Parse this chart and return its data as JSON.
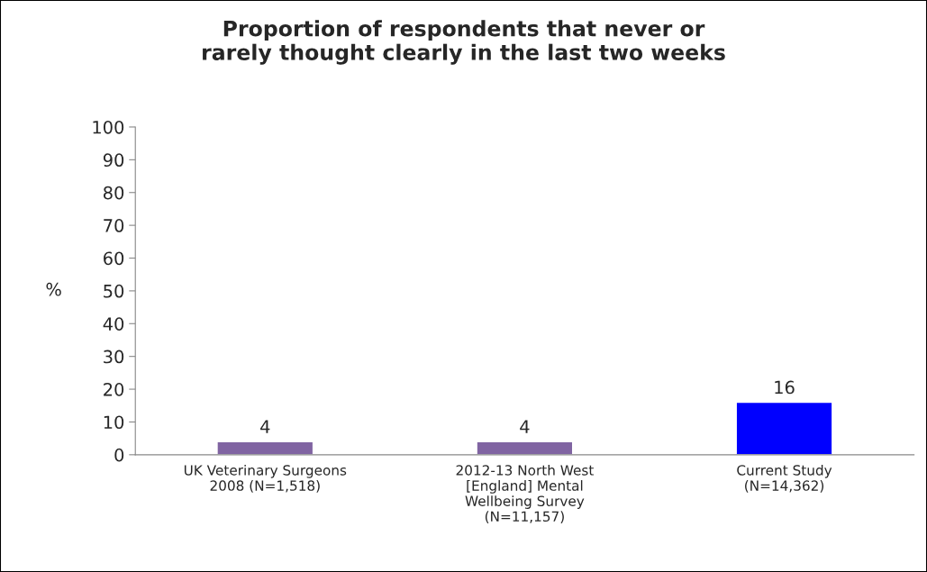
{
  "chart_data": {
    "type": "bar",
    "title": "Proportion of respondents that never or\nrarely thought clearly in the last two weeks",
    "ylabel": "%",
    "categories": [
      "UK Veterinary Surgeons\n2008 (N=1,518)",
      "2012-13 North West\n[England] Mental\nWellbeing Survey\n(N=11,157)",
      "Current Study\n(N=14,362)"
    ],
    "values": [
      4,
      4,
      16
    ],
    "colors": [
      "#8064a2",
      "#8064a2",
      "#0000ff"
    ],
    "ylim": [
      0,
      100
    ],
    "yticks": [
      0,
      10,
      20,
      30,
      40,
      50,
      60,
      70,
      80,
      90,
      100
    ],
    "data_labels": true,
    "grid": false,
    "legend": false
  }
}
